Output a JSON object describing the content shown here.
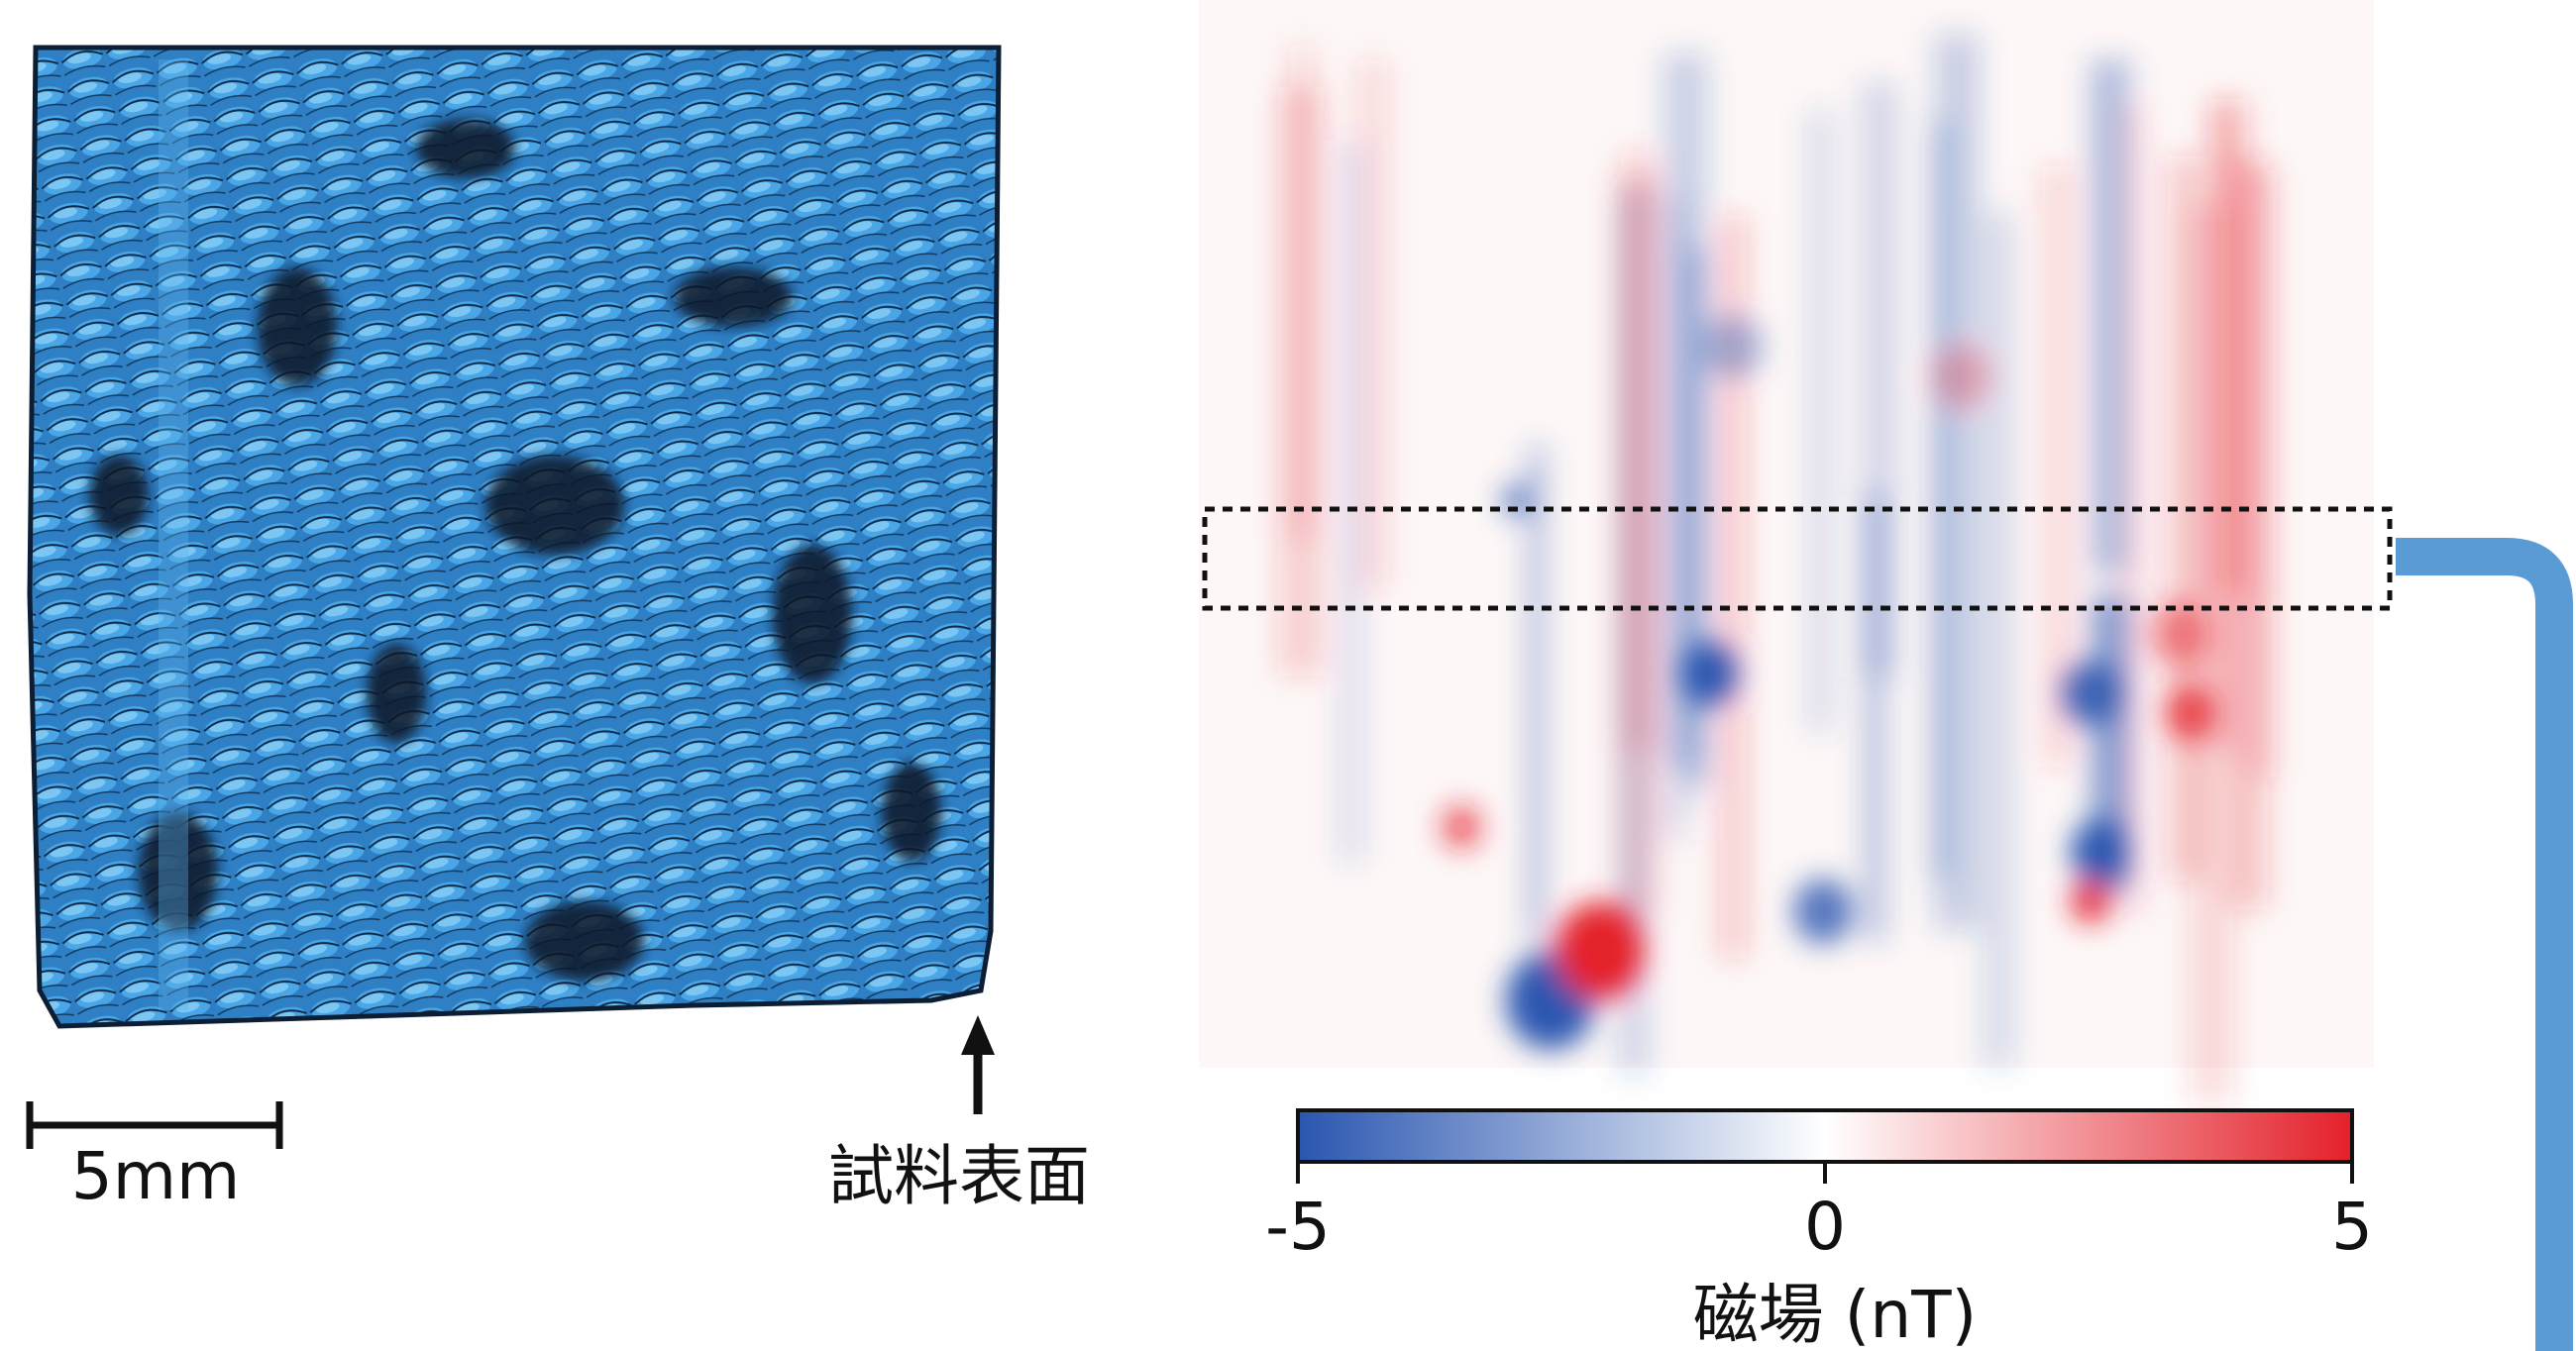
{
  "figure": {
    "scale_bar_label": "5mm",
    "arrow_label": "試料表面",
    "colorbar": {
      "label": "磁場 (nT)",
      "clim": [
        -5,
        5
      ],
      "ticks": [
        -5,
        0,
        5
      ],
      "colors": [
        "#2a56b0",
        "#ffffff",
        "#e4202a"
      ]
    }
  }
}
